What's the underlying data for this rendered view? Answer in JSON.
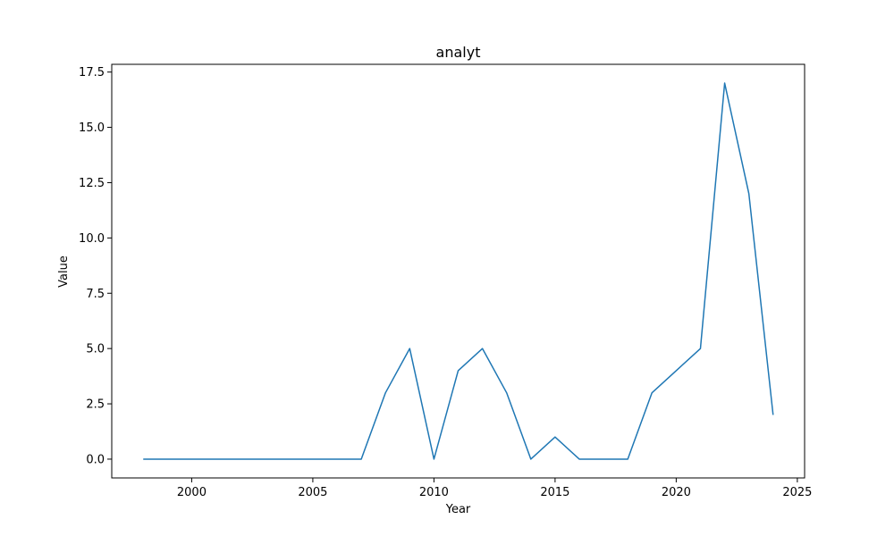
{
  "chart_data": {
    "type": "line",
    "title": "analyt",
    "xlabel": "Year",
    "ylabel": "Value",
    "xlim": [
      1996.7,
      2025.3
    ],
    "ylim": [
      -0.85,
      17.85
    ],
    "xticks": [
      2000,
      2005,
      2010,
      2015,
      2020,
      2025
    ],
    "xtick_labels": [
      "2000",
      "2005",
      "2010",
      "2015",
      "2020",
      "2025"
    ],
    "yticks": [
      0,
      2.5,
      5,
      7.5,
      10,
      12.5,
      15,
      17.5
    ],
    "ytick_labels": [
      "0.0",
      "2.5",
      "5.0",
      "7.5",
      "10.0",
      "12.5",
      "15.0",
      "17.5"
    ],
    "grid": false,
    "series": [
      {
        "color": "#1f77b4",
        "x": [
          1998,
          1999,
          2000,
          2001,
          2002,
          2003,
          2004,
          2005,
          2006,
          2007,
          2008,
          2009,
          2010,
          2011,
          2012,
          2013,
          2014,
          2015,
          2016,
          2017,
          2018,
          2019,
          2020,
          2021,
          2022,
          2023,
          2024
        ],
        "y": [
          0,
          0,
          0,
          0,
          0,
          0,
          0,
          0,
          0,
          0,
          3,
          5,
          0,
          4,
          5,
          3,
          0,
          1,
          0,
          0,
          0,
          3,
          4,
          5,
          17,
          12,
          2
        ]
      }
    ]
  }
}
